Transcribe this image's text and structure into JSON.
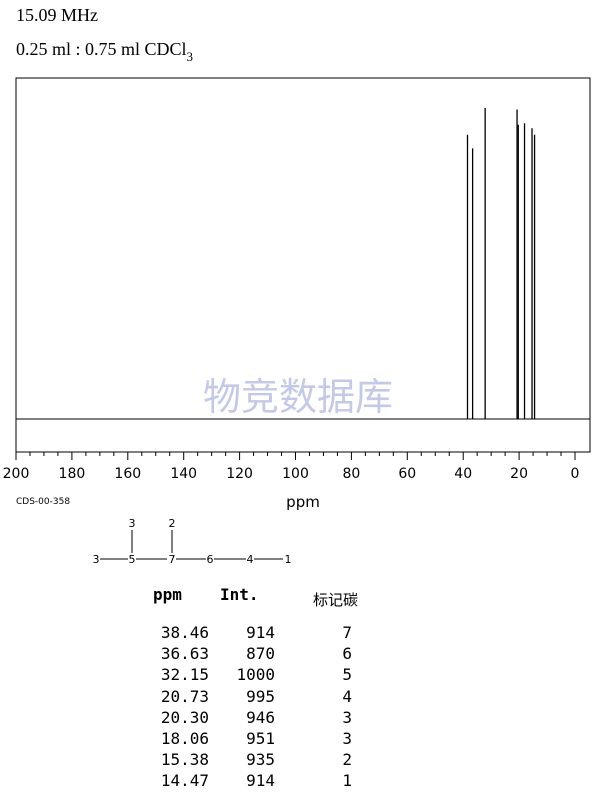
{
  "header": {
    "frequency": "15.09 MHz",
    "sample_main": "0.25 ml : 0.75 ml CDCl",
    "sample_sub": "3"
  },
  "watermark": "物竞数据库",
  "code": "CDS-00-358",
  "structure": {
    "atoms": [
      "3",
      "5",
      "7",
      "6",
      "4",
      "1",
      "3",
      "2"
    ]
  },
  "table": {
    "headers": {
      "ppm": "ppm",
      "int": "Int.",
      "carbon": "标记碳"
    },
    "rows": [
      {
        "ppm": "38.46",
        "int": "914",
        "carbon": "7"
      },
      {
        "ppm": "36.63",
        "int": "870",
        "carbon": "6"
      },
      {
        "ppm": "32.15",
        "int": "1000",
        "carbon": "5"
      },
      {
        "ppm": "20.73",
        "int": "995",
        "carbon": "4"
      },
      {
        "ppm": "20.30",
        "int": "946",
        "carbon": "3"
      },
      {
        "ppm": "18.06",
        "int": "951",
        "carbon": "3"
      },
      {
        "ppm": "15.38",
        "int": "935",
        "carbon": "2"
      },
      {
        "ppm": "14.47",
        "int": "914",
        "carbon": "1"
      }
    ]
  },
  "chart_data": {
    "type": "line",
    "xlabel": "ppm",
    "ylabel": "",
    "xlim": [
      200,
      0
    ],
    "x_reversed": true,
    "xticks": [
      200,
      180,
      160,
      140,
      120,
      100,
      80,
      60,
      40,
      20,
      0
    ],
    "ylim": [
      0,
      1000
    ],
    "grid": false,
    "peaks": [
      {
        "ppm": 38.46,
        "intensity": 914
      },
      {
        "ppm": 36.63,
        "intensity": 870
      },
      {
        "ppm": 32.15,
        "intensity": 1000
      },
      {
        "ppm": 20.73,
        "intensity": 995
      },
      {
        "ppm": 20.3,
        "intensity": 946
      },
      {
        "ppm": 18.06,
        "intensity": 951
      },
      {
        "ppm": 15.38,
        "intensity": 935
      },
      {
        "ppm": 14.47,
        "intensity": 914
      }
    ],
    "color": "#000000"
  }
}
